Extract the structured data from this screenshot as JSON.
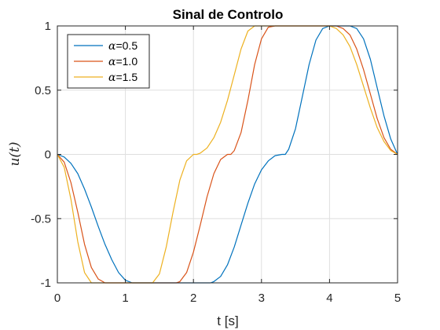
{
  "chart_data": {
    "type": "line",
    "title": "Sinal de Controlo",
    "xlabel": "t [s]",
    "ylabel": "u(t)",
    "xlim": [
      0,
      5
    ],
    "ylim": [
      -1,
      1
    ],
    "xticks": [
      0,
      1,
      2,
      3,
      4,
      5
    ],
    "yticks": [
      -1,
      -0.5,
      0,
      0.5,
      1
    ],
    "xtick_labels": [
      "0",
      "1",
      "2",
      "3",
      "4",
      "5"
    ],
    "ytick_labels": [
      "-1",
      "-0.5",
      "0",
      "0.5",
      "1"
    ],
    "grid": true,
    "legend_position": "top-left",
    "series": [
      {
        "name": "α=0.5",
        "label_symbol": "α",
        "label_value": "=0.5",
        "color": "#0072BD",
        "x": [
          0,
          0.1,
          0.2,
          0.3,
          0.4,
          0.5,
          0.6,
          0.7,
          0.8,
          0.9,
          1.0,
          1.1,
          1.2,
          1.3,
          1.4,
          1.5,
          1.6,
          1.7,
          1.8,
          1.9,
          2.0,
          2.1,
          2.2,
          2.25,
          2.3,
          2.4,
          2.5,
          2.6,
          2.7,
          2.8,
          2.9,
          3.0,
          3.1,
          3.2,
          3.3,
          3.35,
          3.4,
          3.5,
          3.6,
          3.7,
          3.8,
          3.9,
          4.0,
          4.1,
          4.2,
          4.3,
          4.4,
          4.5,
          4.6,
          4.7,
          4.8,
          4.9,
          5.0
        ],
        "y": [
          0,
          -0.02,
          -0.07,
          -0.15,
          -0.27,
          -0.41,
          -0.56,
          -0.7,
          -0.82,
          -0.92,
          -0.98,
          -1,
          -1,
          -1,
          -1,
          -1,
          -1,
          -1,
          -1,
          -1,
          -1,
          -1,
          -1,
          -1,
          -0.99,
          -0.95,
          -0.86,
          -0.72,
          -0.55,
          -0.38,
          -0.23,
          -0.12,
          -0.05,
          -0.01,
          0,
          0,
          0.04,
          0.2,
          0.45,
          0.7,
          0.89,
          0.98,
          1,
          1,
          1,
          1,
          0.98,
          0.9,
          0.74,
          0.52,
          0.3,
          0.12,
          0
        ]
      },
      {
        "name": "α=1.0",
        "label_symbol": "α",
        "label_value": "=1.0",
        "color": "#D95319",
        "x": [
          0,
          0.1,
          0.2,
          0.3,
          0.4,
          0.5,
          0.6,
          0.7,
          0.75,
          0.8,
          0.9,
          1.0,
          1.1,
          1.2,
          1.3,
          1.4,
          1.5,
          1.6,
          1.7,
          1.75,
          1.8,
          1.9,
          2.0,
          2.1,
          2.2,
          2.3,
          2.4,
          2.5,
          2.55,
          2.6,
          2.7,
          2.8,
          2.9,
          3.0,
          3.1,
          3.2,
          3.3,
          3.4,
          3.5,
          3.6,
          3.7,
          3.8,
          3.9,
          4.0,
          4.1,
          4.2,
          4.3,
          4.4,
          4.5,
          4.6,
          4.7,
          4.8,
          4.9,
          5.0
        ],
        "y": [
          0,
          -0.06,
          -0.22,
          -0.45,
          -0.7,
          -0.88,
          -0.97,
          -1,
          -1,
          -1,
          -1,
          -1,
          -1,
          -1,
          -1,
          -1,
          -1,
          -1,
          -1,
          -1,
          -0.99,
          -0.92,
          -0.76,
          -0.55,
          -0.33,
          -0.15,
          -0.04,
          0,
          0,
          0.03,
          0.17,
          0.42,
          0.7,
          0.9,
          0.99,
          1,
          1,
          1,
          1,
          1,
          1,
          1,
          1,
          1,
          1,
          0.98,
          0.93,
          0.82,
          0.66,
          0.47,
          0.28,
          0.13,
          0.04,
          0
        ]
      },
      {
        "name": "α=1.5",
        "label_symbol": "α",
        "label_value": "=1.5",
        "color": "#EDB120",
        "x": [
          0,
          0.1,
          0.2,
          0.3,
          0.4,
          0.5,
          0.6,
          0.7,
          0.8,
          0.9,
          1.0,
          1.1,
          1.2,
          1.3,
          1.4,
          1.5,
          1.6,
          1.7,
          1.8,
          1.9,
          2.0,
          2.05,
          2.1,
          2.2,
          2.3,
          2.4,
          2.5,
          2.6,
          2.7,
          2.8,
          2.9,
          3.0,
          3.1,
          3.2,
          3.3,
          3.4,
          3.5,
          3.6,
          3.7,
          3.8,
          3.9,
          4.0,
          4.1,
          4.2,
          4.3,
          4.4,
          4.5,
          4.6,
          4.7,
          4.8,
          4.9,
          5.0
        ],
        "y": [
          0,
          -0.1,
          -0.35,
          -0.68,
          -0.92,
          -1,
          -1,
          -1,
          -1,
          -1,
          -1,
          -1,
          -1,
          -1,
          -1,
          -0.93,
          -0.72,
          -0.45,
          -0.2,
          -0.05,
          0,
          0,
          0.01,
          0.05,
          0.13,
          0.25,
          0.42,
          0.62,
          0.82,
          0.96,
          1,
          1,
          1,
          1,
          1,
          1,
          1,
          1,
          1,
          1,
          1,
          1,
          0.98,
          0.93,
          0.84,
          0.7,
          0.53,
          0.36,
          0.21,
          0.1,
          0.03,
          0
        ]
      }
    ]
  }
}
